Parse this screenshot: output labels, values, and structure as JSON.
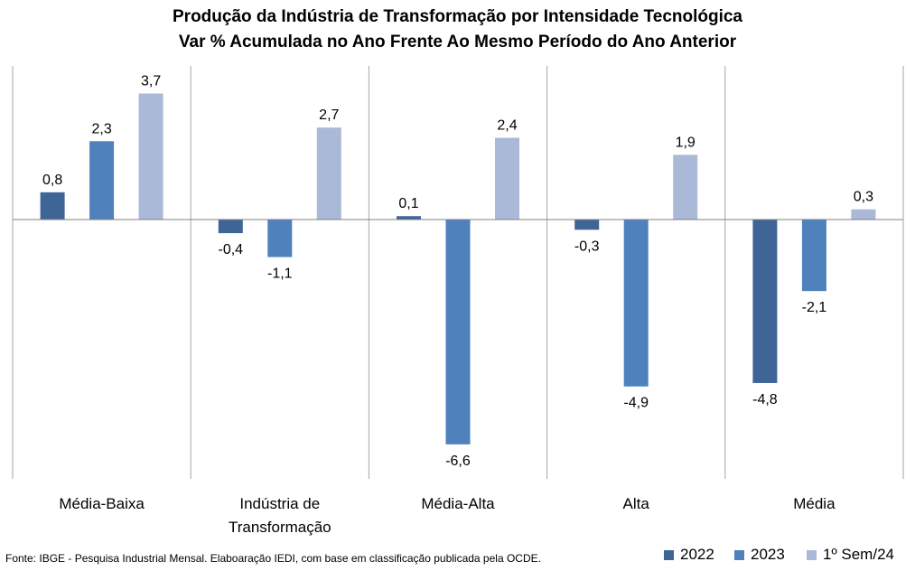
{
  "chart_data": {
    "type": "bar",
    "title": "Produção da Indústria de Transformação por Intensidade Tecnológica",
    "subtitle": "Var % Acumulada no Ano Frente Ao Mesmo Período do Ano Anterior",
    "categories": [
      [
        "Média-Baixa"
      ],
      [
        "Indústria de",
        "Transformação"
      ],
      [
        "Média-Alta"
      ],
      [
        "Alta"
      ],
      [
        "Média"
      ]
    ],
    "series": [
      {
        "name": "2022",
        "color": "#3f6597",
        "values": [
          0.8,
          -0.4,
          0.1,
          -0.3,
          -4.8
        ],
        "labels": [
          "0,8",
          "-0,4",
          "0,1",
          "-0,3",
          "-4,8"
        ]
      },
      {
        "name": "2023",
        "color": "#4f81bd",
        "values": [
          2.3,
          -1.1,
          -6.6,
          -4.9,
          -2.1
        ],
        "labels": [
          "2,3",
          "-1,1",
          "-6,6",
          "-4,9",
          "-2,1"
        ]
      },
      {
        "name": "1º Sem/24",
        "color": "#aab9d7",
        "values": [
          3.7,
          2.7,
          2.4,
          1.9,
          0.3
        ],
        "labels": [
          "3,7",
          "2,7",
          "2,4",
          "1,9",
          "0,3"
        ]
      }
    ],
    "ylim": [
      -7.5,
      4.5
    ],
    "xlabel": "",
    "ylabel": "",
    "grid": false,
    "legend_position": "bottom-right"
  },
  "source": "Fonte: IBGE - Pesquisa Industrial Mensal. Elaboaração IEDI, com base em classificação publicada pela OCDE."
}
